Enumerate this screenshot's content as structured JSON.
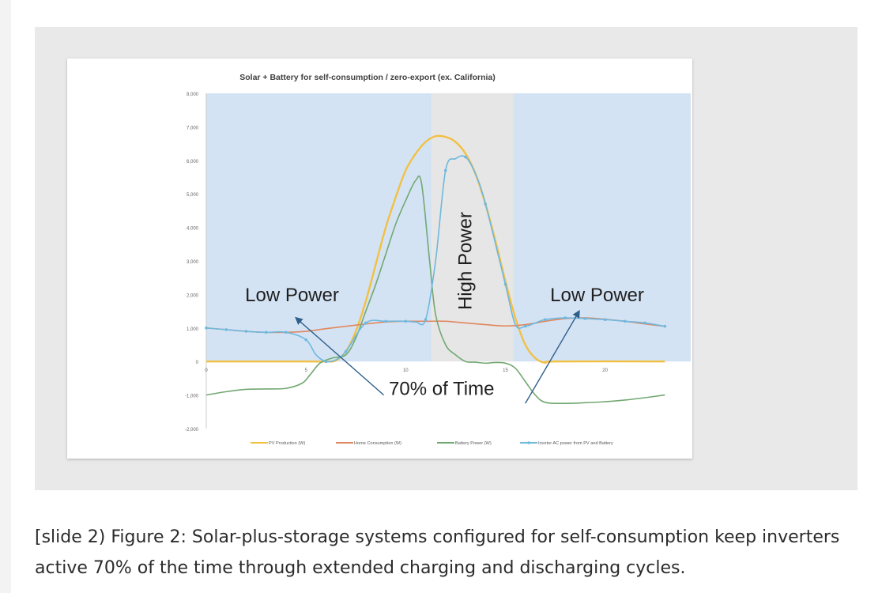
{
  "caption": "[slide 2) Figure 2: Solar-plus-storage systems configured for self-consumption keep inverters active 70% of the time through extended charging and discharging cycles.",
  "chart_data": {
    "type": "line",
    "title": "Solar + Battery for self-consumption / zero-export (ex. California)",
    "xlabel": "",
    "ylabel": "",
    "xlim": [
      0,
      23
    ],
    "ylim": [
      -2000,
      8000
    ],
    "x_ticks": [
      "0",
      "5",
      "10",
      "15",
      "20"
    ],
    "y_ticks": [
      "8,000",
      "7,000",
      "6,000",
      "5,000",
      "4,000",
      "3,000",
      "2,000",
      "1,000",
      "0",
      "-1,000",
      "-2,000"
    ],
    "grid": false,
    "legend_position": "bottom",
    "shaded_regions": [
      {
        "x0": 0,
        "x1": 11.3,
        "color": "#d4e3f4"
      },
      {
        "x0": 11.3,
        "x1": 15.4,
        "color": "#e6e6e6"
      },
      {
        "x0": 15.4,
        "x1": 24.5,
        "color": "#d4e3f4"
      }
    ],
    "series": [
      {
        "name": "PV Production (W)",
        "color": "#f2c043",
        "marker": false,
        "points": [
          [
            0,
            0
          ],
          [
            5,
            0
          ],
          [
            6,
            0
          ],
          [
            6.5,
            30
          ],
          [
            7,
            300
          ],
          [
            7.5,
            900
          ],
          [
            8,
            1800
          ],
          [
            8.5,
            2900
          ],
          [
            9,
            4000
          ],
          [
            9.5,
            4900
          ],
          [
            10,
            5700
          ],
          [
            10.5,
            6200
          ],
          [
            11,
            6550
          ],
          [
            11.5,
            6720
          ],
          [
            12,
            6700
          ],
          [
            12.5,
            6550
          ],
          [
            13,
            6200
          ],
          [
            13.5,
            5600
          ],
          [
            14,
            4700
          ],
          [
            14.5,
            3600
          ],
          [
            15,
            2400
          ],
          [
            15.5,
            1300
          ],
          [
            16,
            500
          ],
          [
            16.5,
            100
          ],
          [
            17,
            -40
          ],
          [
            17.5,
            0
          ],
          [
            23,
            0
          ]
        ]
      },
      {
        "name": "Home Consumption (W)",
        "color": "#e0875f",
        "marker": false,
        "points": [
          [
            0,
            1000
          ],
          [
            1,
            950
          ],
          [
            2,
            900
          ],
          [
            3,
            870
          ],
          [
            4,
            870
          ],
          [
            5,
            900
          ],
          [
            6,
            980
          ],
          [
            7,
            1050
          ],
          [
            8,
            1120
          ],
          [
            9,
            1180
          ],
          [
            10,
            1200
          ],
          [
            11,
            1200
          ],
          [
            12,
            1200
          ],
          [
            13,
            1150
          ],
          [
            14,
            1100
          ],
          [
            15,
            1060
          ],
          [
            16,
            1100
          ],
          [
            17,
            1200
          ],
          [
            18,
            1280
          ],
          [
            19,
            1300
          ],
          [
            20,
            1260
          ],
          [
            21,
            1200
          ],
          [
            22,
            1120
          ],
          [
            23,
            1050
          ]
        ]
      },
      {
        "name": "Battery Power (W)",
        "color": "#72a872",
        "marker": false,
        "points": [
          [
            0,
            -1000
          ],
          [
            1,
            -900
          ],
          [
            2,
            -830
          ],
          [
            3,
            -820
          ],
          [
            4,
            -800
          ],
          [
            4.8,
            -650
          ],
          [
            5.2,
            -400
          ],
          [
            5.7,
            -50
          ],
          [
            6.3,
            100
          ],
          [
            7,
            200
          ],
          [
            7.5,
            700
          ],
          [
            8,
            1500
          ],
          [
            8.5,
            2300
          ],
          [
            9,
            3200
          ],
          [
            9.5,
            4100
          ],
          [
            10,
            4800
          ],
          [
            10.5,
            5400
          ],
          [
            10.8,
            5300
          ],
          [
            11.2,
            3000
          ],
          [
            11.5,
            1400
          ],
          [
            12,
            500
          ],
          [
            12.5,
            200
          ],
          [
            13,
            0
          ],
          [
            13.5,
            -20
          ],
          [
            14,
            -50
          ],
          [
            14.5,
            -30
          ],
          [
            15,
            -50
          ],
          [
            15.5,
            -200
          ],
          [
            16,
            -600
          ],
          [
            16.5,
            -1000
          ],
          [
            17,
            -1220
          ],
          [
            18,
            -1250
          ],
          [
            19,
            -1230
          ],
          [
            20,
            -1200
          ],
          [
            21,
            -1150
          ],
          [
            22,
            -1080
          ],
          [
            23,
            -1000
          ]
        ]
      },
      {
        "name": "Invetor AC power from PV and Battery",
        "color": "#6fb8de",
        "marker": true,
        "points": [
          [
            0,
            1000
          ],
          [
            1,
            950
          ],
          [
            2,
            900
          ],
          [
            3,
            870
          ],
          [
            4,
            870
          ],
          [
            5,
            650
          ],
          [
            5.5,
            200
          ],
          [
            6,
            0
          ],
          [
            6.5,
            50
          ],
          [
            7,
            300
          ],
          [
            8,
            1150
          ],
          [
            9,
            1200
          ],
          [
            10,
            1200
          ],
          [
            10.5,
            1180
          ],
          [
            11,
            1250
          ],
          [
            11.5,
            3000
          ],
          [
            12,
            5700
          ],
          [
            12.5,
            6050
          ],
          [
            13,
            6100
          ],
          [
            13.5,
            5600
          ],
          [
            14,
            4700
          ],
          [
            15,
            2300
          ],
          [
            15.5,
            1100
          ],
          [
            16,
            1050
          ],
          [
            16.5,
            1150
          ],
          [
            17,
            1250
          ],
          [
            18,
            1300
          ],
          [
            19,
            1280
          ],
          [
            20,
            1250
          ],
          [
            21,
            1200
          ],
          [
            22,
            1150
          ],
          [
            23,
            1050
          ]
        ]
      }
    ],
    "annotations": [
      {
        "text": "Low Power",
        "x": 4.3,
        "y": 1800
      },
      {
        "text": "Low Power",
        "x": 19.6,
        "y": 1800
      },
      {
        "text": "High Power",
        "x": 13.3,
        "y": 3000,
        "rotate": -90
      },
      {
        "text": "70% of Time",
        "x": 11.8,
        "y": -1000
      }
    ],
    "arrows": [
      {
        "from": [
          8.9,
          -1000
        ],
        "to": [
          4.5,
          1300
        ]
      },
      {
        "from": [
          16.0,
          -1250
        ],
        "to": [
          18.7,
          1500
        ]
      }
    ]
  }
}
